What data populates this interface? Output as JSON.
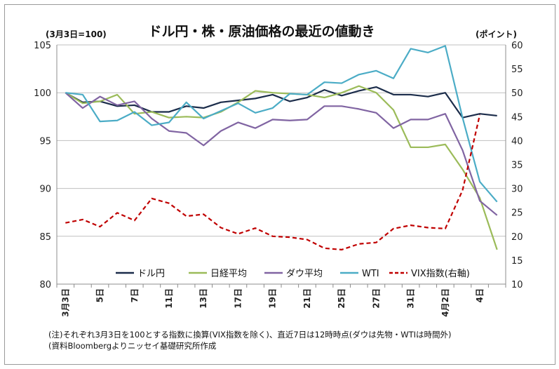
{
  "chart_data": {
    "type": "line",
    "title": "ドル円・株・原油価格の最近の値動き",
    "left_unit": "(3月3日=100)",
    "right_unit": "(ポイント)",
    "ylim_left": [
      80,
      105
    ],
    "ylim_right": [
      10,
      60
    ],
    "yticks_left": [
      80,
      85,
      90,
      95,
      100,
      105
    ],
    "yticks_right": [
      10,
      15,
      20,
      25,
      30,
      35,
      40,
      45,
      50,
      55,
      60
    ],
    "x_count": 26,
    "xtick_labels": [
      {
        "index": 0,
        "label": "3月3日"
      },
      {
        "index": 2,
        "label": "5日"
      },
      {
        "index": 4,
        "label": "7日"
      },
      {
        "index": 6,
        "label": "11日"
      },
      {
        "index": 8,
        "label": "13日"
      },
      {
        "index": 10,
        "label": "17日"
      },
      {
        "index": 12,
        "label": "19日"
      },
      {
        "index": 14,
        "label": "21日"
      },
      {
        "index": 16,
        "label": "25日"
      },
      {
        "index": 18,
        "label": "27日"
      },
      {
        "index": 20,
        "label": "31日"
      },
      {
        "index": 22,
        "label": "4月2日"
      },
      {
        "index": 24,
        "label": "4日"
      }
    ],
    "series": [
      {
        "name": "ドル円",
        "axis": "left",
        "color": "#1b2c4a",
        "dash": false,
        "values": [
          100,
          99.0,
          99.1,
          98.6,
          98.7,
          98.0,
          98.0,
          98.6,
          98.4,
          99.0,
          99.2,
          99.4,
          99.8,
          99.1,
          99.5,
          100.3,
          99.7,
          100.2,
          100.6,
          99.8,
          99.8,
          99.6,
          100.0,
          97.4,
          97.8,
          97.6
        ]
      },
      {
        "name": "日経平均",
        "axis": "left",
        "color": "#9bbb59",
        "dash": false,
        "values": [
          100,
          98.9,
          99.1,
          99.8,
          97.8,
          98.0,
          97.4,
          97.5,
          97.4,
          98.0,
          99.0,
          100.2,
          100.0,
          99.9,
          99.8,
          99.5,
          100.0,
          100.7,
          100.0,
          98.2,
          94.3,
          94.3,
          94.6,
          92.0,
          89.0,
          83.6
        ]
      },
      {
        "name": "ダウ平均",
        "axis": "left",
        "color": "#8064a2",
        "dash": false,
        "values": [
          100,
          98.4,
          99.6,
          98.7,
          99.1,
          97.3,
          96.0,
          95.8,
          94.5,
          96.0,
          96.9,
          96.3,
          97.2,
          97.1,
          97.2,
          98.6,
          98.6,
          98.3,
          97.9,
          96.3,
          97.2,
          97.2,
          97.8,
          94.0,
          88.7,
          87.2
        ]
      },
      {
        "name": "WTI",
        "axis": "left",
        "color": "#4bacc6",
        "dash": false,
        "values": [
          100,
          99.8,
          97.0,
          97.1,
          98.0,
          96.6,
          96.9,
          99.0,
          97.3,
          98.1,
          98.9,
          97.9,
          98.4,
          99.9,
          99.8,
          101.1,
          101.0,
          101.9,
          102.3,
          101.5,
          104.6,
          104.2,
          104.9,
          97.4,
          90.7,
          88.6
        ]
      },
      {
        "name": "VIX指数(右軸)",
        "axis": "right",
        "color": "#c00000",
        "dash": true,
        "values": [
          22.8,
          23.5,
          22.0,
          24.9,
          23.3,
          27.9,
          26.9,
          24.2,
          24.6,
          21.8,
          20.5,
          21.7,
          20.0,
          19.8,
          19.3,
          17.5,
          17.2,
          18.4,
          18.7,
          21.6,
          22.3,
          21.8,
          21.6,
          29.6,
          45.4,
          null
        ]
      }
    ],
    "legend_placement": "bottom",
    "grid": {
      "horizontal": true,
      "vertical": false
    }
  },
  "notes": [
    "(注)それぞれ3月3日を100とする指数に換算(VIX指数を除く)、直近7日は12時時点(ダウは先物・WTIは時間外)",
    "(資料Bloombergよりニッセイ基礎研究所作成"
  ]
}
